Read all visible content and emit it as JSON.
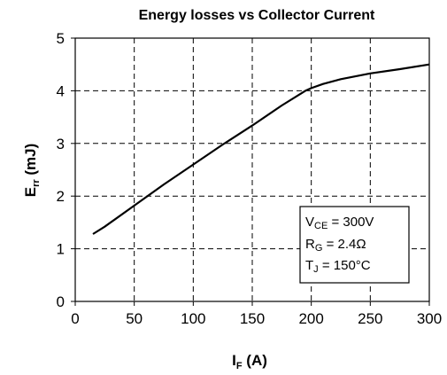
{
  "chart_data": {
    "type": "line",
    "title": "Energy losses vs Collector Current",
    "xlabel": {
      "main": "I",
      "sub": "F",
      "rest": " (A)"
    },
    "ylabel": {
      "main": "E",
      "sub": "rr",
      "rest": " (mJ)"
    },
    "xlim": [
      0,
      300
    ],
    "ylim": [
      0,
      5
    ],
    "xticks": [
      "0",
      "50",
      "100",
      "150",
      "200",
      "250",
      "300"
    ],
    "yticks": [
      "0",
      "1",
      "2",
      "3",
      "4",
      "5"
    ],
    "grid": true,
    "series": [
      {
        "x": [
          15,
          25,
          50,
          75,
          100,
          125,
          150,
          175,
          195,
          200,
          210,
          225,
          250,
          275,
          300
        ],
        "y": [
          1.28,
          1.42,
          1.82,
          2.22,
          2.6,
          2.98,
          3.34,
          3.72,
          4.0,
          4.05,
          4.13,
          4.22,
          4.33,
          4.41,
          4.5
        ]
      }
    ],
    "annotation": [
      {
        "main": "V",
        "sub": "CE",
        "rest": " = 300V"
      },
      {
        "main": "R",
        "sub": "G",
        "rest": " = 2.4Ω"
      },
      {
        "main": "T",
        "sub": "J",
        "rest": " = 150°C"
      }
    ]
  }
}
